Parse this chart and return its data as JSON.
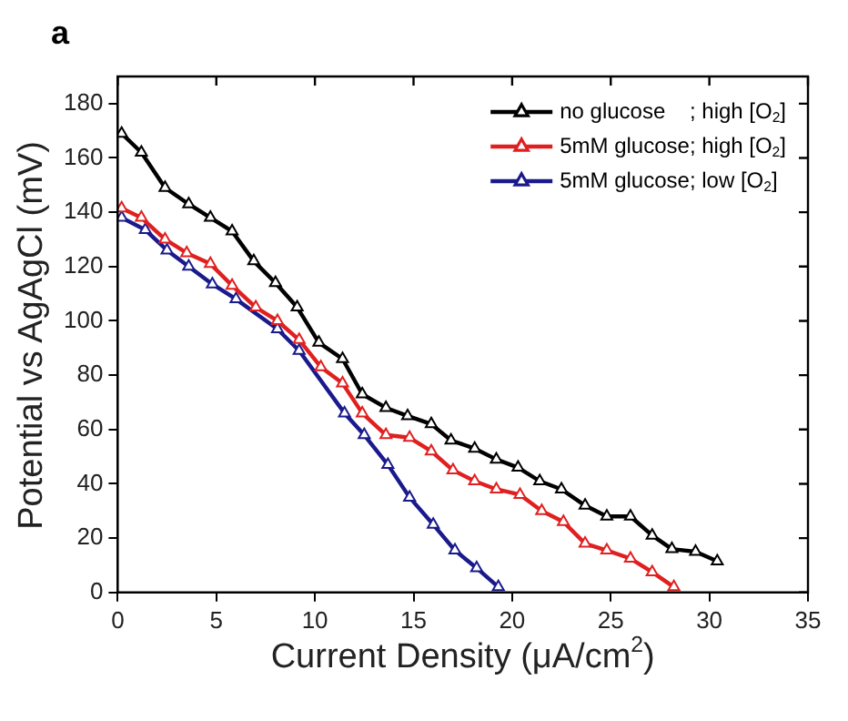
{
  "chart_data": {
    "type": "line",
    "xlabel": "Current Density (μA/cm$^{2}$)",
    "ylabel": "Potential vs AgAgCl (mV)",
    "annotations": [
      "a"
    ],
    "xlim": [
      0,
      35
    ],
    "xticks": [
      0,
      5,
      10,
      15,
      20,
      25,
      30,
      35
    ],
    "ylim": [
      0,
      190
    ],
    "yticks": [
      0,
      20,
      40,
      60,
      80,
      100,
      120,
      140,
      160,
      180
    ],
    "legend": "top right",
    "marker": "triangle",
    "line_style": "solid",
    "series": [
      {
        "name": "no glucose    ; high [O$_{2}$]",
        "color": "#000000",
        "x": [
          0.2,
          1.2,
          2.4,
          3.6,
          4.7,
          5.8,
          6.9,
          8.0,
          9.1,
          10.2,
          11.4,
          12.4,
          13.6,
          14.7,
          15.9,
          16.9,
          18.1,
          19.2,
          20.3,
          21.4,
          22.5,
          23.7,
          24.8,
          26.0,
          27.1,
          28.1,
          29.3,
          30.4
        ],
        "values": [
          169,
          162,
          149,
          143,
          138,
          133,
          122,
          114,
          105,
          92,
          86,
          73,
          68,
          65,
          62,
          56,
          53,
          49,
          46,
          41,
          38,
          32,
          28,
          28,
          21,
          16,
          15,
          11.5
        ]
      },
      {
        "name": "5mM glucose; high [O$_{2}$]",
        "color": "#e02020",
        "x": [
          0.2,
          1.2,
          2.4,
          3.5,
          4.7,
          5.8,
          7.0,
          8.1,
          9.2,
          10.3,
          11.4,
          12.4,
          13.6,
          14.8,
          15.9,
          17.0,
          18.1,
          19.2,
          20.4,
          21.5,
          22.6,
          23.7,
          24.8,
          26.0,
          27.1,
          28.2
        ],
        "values": [
          141.5,
          138,
          130,
          125,
          121,
          113,
          105,
          100,
          93,
          83,
          77,
          66,
          58,
          57,
          52,
          45,
          41,
          38,
          36,
          30,
          26,
          18,
          15.5,
          12.5,
          7.5,
          2
        ]
      },
      {
        "name": "5mM glucose; low [O$_{2}$]",
        "color": "#1a1a8c",
        "x": [
          0.2,
          1.4,
          2.5,
          3.6,
          4.8,
          6.0,
          7.0,
          8.1,
          9.2,
          10.3,
          11.5,
          12.5,
          13.7,
          14.8,
          16.0,
          17.1,
          18.2,
          19.3
        ],
        "values": [
          138,
          133.5,
          126,
          120,
          113.5,
          108,
          null,
          97,
          89,
          null,
          66,
          58,
          47,
          35,
          25,
          15.5,
          9,
          2
        ]
      }
    ]
  }
}
